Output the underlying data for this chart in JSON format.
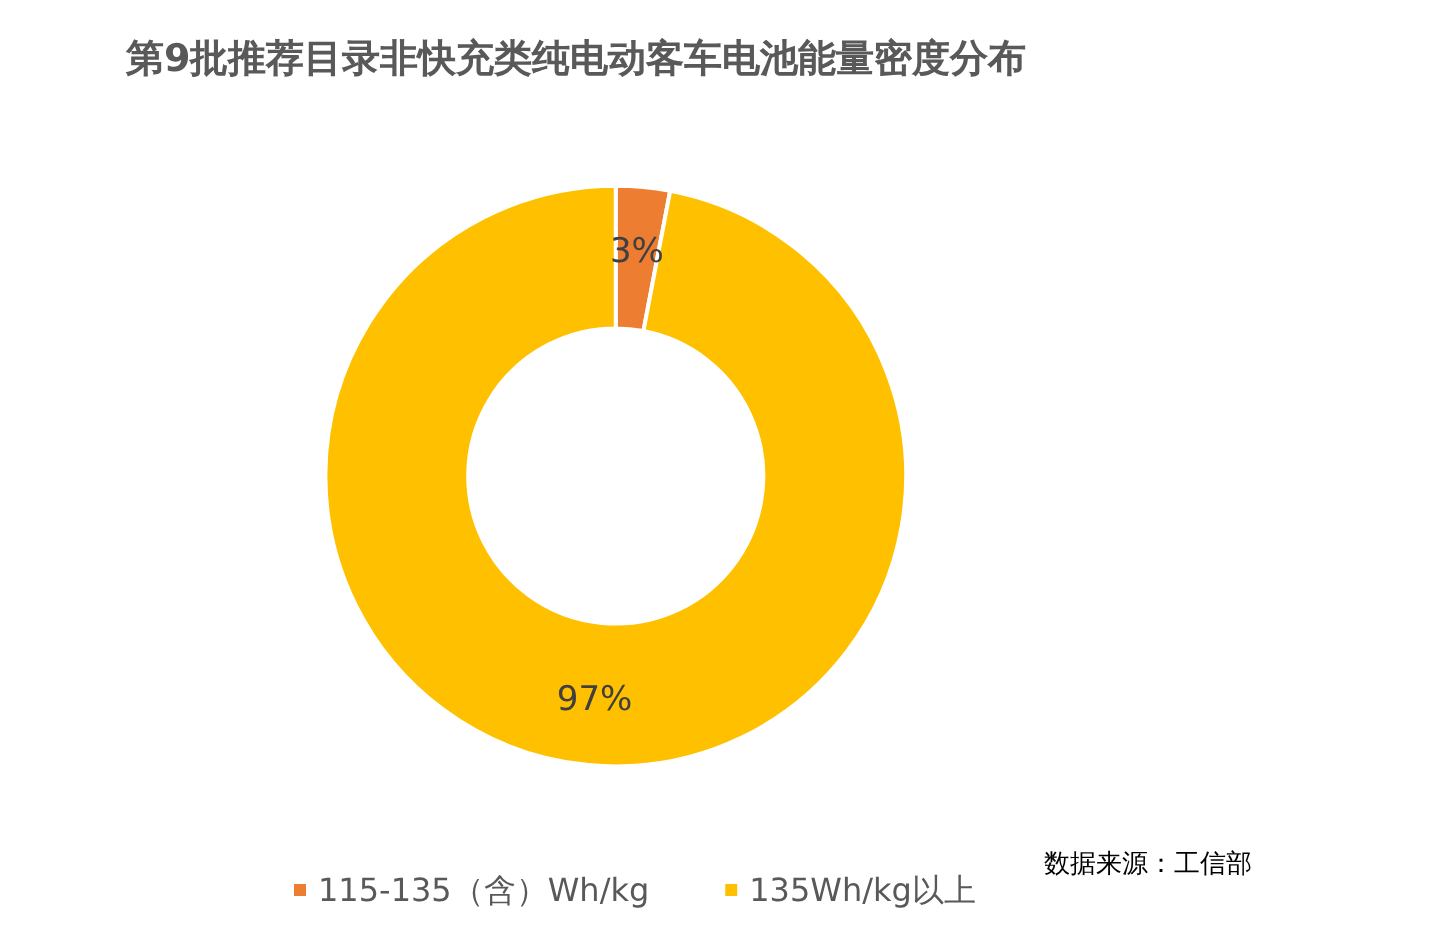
{
  "chart_data": {
    "type": "donut",
    "title": "第9批推荐目录非快充类纯电动客车电池能量密度分布",
    "categories": [
      "115-135（含）Wh/kg",
      "135Wh/kg以上"
    ],
    "values": [
      3,
      97
    ],
    "colors": [
      "#ed7d31",
      "#ffc000"
    ],
    "value_labels": [
      "3%",
      "97%"
    ],
    "legend": "bottom",
    "annotations": [
      "数据来源：工信部"
    ]
  }
}
